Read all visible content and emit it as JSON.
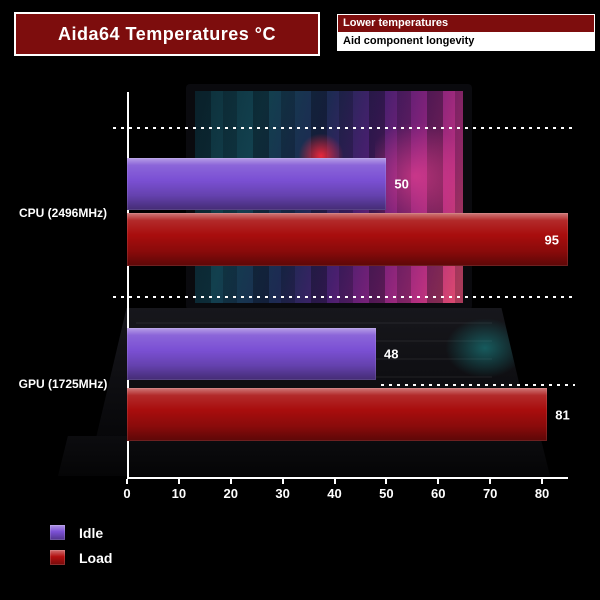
{
  "title": "Aida64 Temperatures °C",
  "callouts": [
    {
      "text": "Lower temperatures"
    },
    {
      "text": "Aid component longevity"
    }
  ],
  "chart_data": {
    "type": "bar",
    "orientation": "horizontal",
    "title": "Aida64 Temperatures °C",
    "categories": [
      "CPU (2496MHz)",
      "GPU (1725MHz)"
    ],
    "series": [
      {
        "name": "Idle",
        "color": "#7b50d4",
        "values": [
          50,
          48
        ]
      },
      {
        "name": "Load",
        "color": "#a80d0d",
        "values": [
          95,
          81
        ]
      }
    ],
    "x_ticks": [
      0,
      10,
      20,
      30,
      40,
      50,
      60,
      70,
      80
    ],
    "xlim": [
      0,
      85
    ],
    "grid": "dotted horizontal category separators",
    "legend_position": "bottom-left",
    "value_labels": true,
    "background": "black with laptop photo"
  },
  "legend": [
    {
      "label": "Idle",
      "color": "#7b50d4"
    },
    {
      "label": "Load",
      "color": "#b20f0f"
    }
  ],
  "colors": {
    "background": "#000000",
    "title_box_bg": "#7d0d0d",
    "callout_red_bg": "#7d0d0d",
    "text": "#ffffff",
    "axis": "#ffffff",
    "idle_bar": "#7b50d4",
    "load_bar": "#a80d0d"
  }
}
